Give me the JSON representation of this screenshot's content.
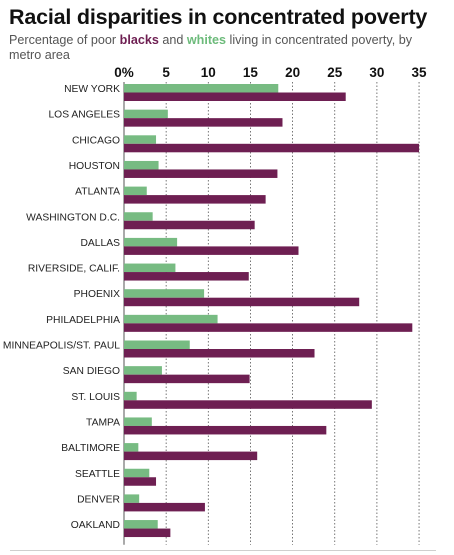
{
  "header": {
    "title": "Racial disparities in concentrated poverty",
    "subtitle_pre": "Percentage of poor ",
    "subtitle_blacks": "blacks",
    "subtitle_and": " and ",
    "subtitle_whites": "whites",
    "subtitle_post": " living in concentrated poverty, by metro area"
  },
  "colors": {
    "blacks": "#6e1f52",
    "whites": "#77bb82",
    "grid": "#555555"
  },
  "chart_data": {
    "type": "bar",
    "orientation": "horizontal",
    "title": "Racial disparities in concentrated poverty",
    "xlim": [
      0,
      35
    ],
    "x_ticks": [
      "0%",
      "5",
      "10",
      "15",
      "20",
      "25",
      "30",
      "35"
    ],
    "x_tick_values": [
      0,
      5,
      10,
      15,
      20,
      25,
      30,
      35
    ],
    "grid": true,
    "categories": [
      "NEW YORK",
      "LOS ANGELES",
      "CHICAGO",
      "HOUSTON",
      "ATLANTA",
      "WASHINGTON D.C.",
      "DALLAS",
      "RIVERSIDE, CALIF.",
      "PHOENIX",
      "PHILADELPHIA",
      "MINNEAPOLIS/ST. PAUL",
      "SAN DIEGO",
      "ST. LOUIS",
      "TAMPA",
      "BALTIMORE",
      "SEATTLE",
      "DENVER",
      "OAKLAND"
    ],
    "series": [
      {
        "name": "whites",
        "values": [
          18.3,
          5.2,
          3.8,
          4.1,
          2.7,
          3.4,
          6.3,
          6.1,
          9.5,
          11.1,
          7.8,
          4.5,
          1.5,
          3.3,
          1.7,
          3.0,
          1.8,
          4.0
        ]
      },
      {
        "name": "blacks",
        "values": [
          26.3,
          18.8,
          35.0,
          18.2,
          16.8,
          15.5,
          20.7,
          14.8,
          27.9,
          34.2,
          22.6,
          14.9,
          29.4,
          24.0,
          15.8,
          3.8,
          9.6,
          5.5
        ]
      }
    ]
  }
}
